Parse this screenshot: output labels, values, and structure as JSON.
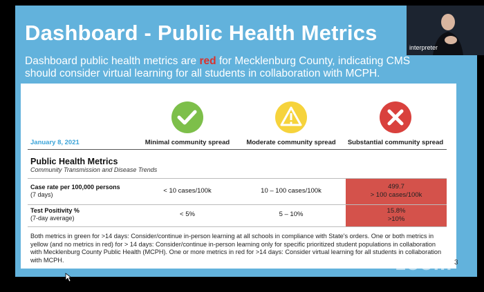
{
  "slide": {
    "title": "Dashboard - Public Health Metrics",
    "subtitle_parts": [
      "Dashboard public health metrics are ",
      "red",
      " for Mecklenburg County, indicating CMS should consider virtual learning for all students in collaboration with MCPH."
    ],
    "date": "January 8, 2021",
    "columns": [
      "Minimal community spread",
      "Moderate community spread",
      "Substantial community spread"
    ],
    "section_title": "Public Health Metrics",
    "section_subtitle": "Community Transmission and Disease Trends",
    "rows": [
      {
        "metric": "Case rate per 100,000 persons",
        "detail": "(7 days)",
        "minimal": "< 10 cases/100k",
        "moderate": "10 – 100 cases/100k",
        "substantial_value": "499.7",
        "substantial_threshold": "> 100 cases/100k"
      },
      {
        "metric": "Test Positivity %",
        "detail": "(7-day average)",
        "minimal": "< 5%",
        "moderate": "5 – 10%",
        "substantial_value": "15.8%",
        "substantial_threshold": ">10%"
      }
    ],
    "footer": "Both metrics in green for >14 days: Consider/continue in-person learning at all schools in compliance with State's orders. One or both metrics in yellow (and no metrics in red) for > 14 days: Consider/continue in-person learning only for specific prioritized student populations in collaboration with Mecklenburg County Public Health (MCPH). One or more metrics in red for >14 days: Consider virtual learning for all students in collaboration with MCPH.",
    "page_number": "3"
  },
  "video": {
    "participant": "interpreter"
  },
  "watermark": "zoom"
}
